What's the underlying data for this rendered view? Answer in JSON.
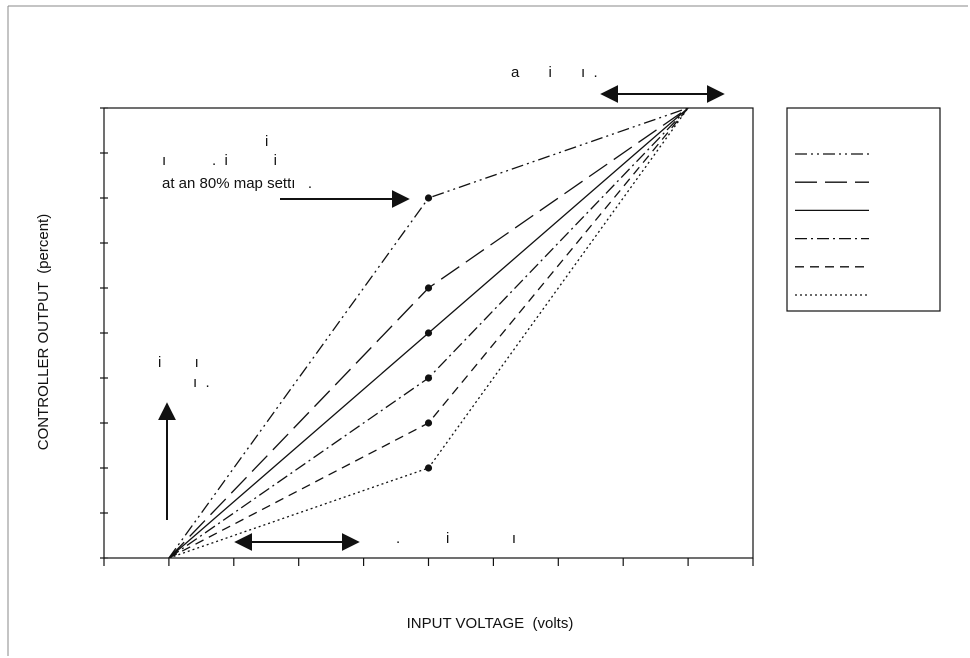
{
  "chart_data": {
    "type": "line",
    "title": "",
    "xlabel": "INPUT VOLTAGE  (volts)",
    "ylabel": "CONTROLLER OUTPUT  (percent)",
    "x_tick_count": 10,
    "y_tick_count": 10,
    "xlim": [
      0,
      10
    ],
    "ylim": [
      0,
      10
    ],
    "grid": false,
    "legend": {
      "position": "right",
      "entries": 6
    },
    "series": [
      {
        "style": "dash-dot-dot",
        "points": [
          [
            1,
            0
          ],
          [
            5,
            8
          ],
          [
            9,
            10
          ]
        ]
      },
      {
        "style": "long-dash",
        "points": [
          [
            1,
            0
          ],
          [
            5,
            6
          ],
          [
            9,
            10
          ]
        ]
      },
      {
        "style": "solid",
        "points": [
          [
            1,
            0
          ],
          [
            5,
            5
          ],
          [
            9,
            10
          ]
        ]
      },
      {
        "style": "dash-dot",
        "points": [
          [
            1,
            0
          ],
          [
            5,
            4
          ],
          [
            9,
            10
          ]
        ]
      },
      {
        "style": "short-dash",
        "points": [
          [
            1,
            0
          ],
          [
            5,
            3
          ],
          [
            9,
            10
          ]
        ]
      },
      {
        "style": "dotted",
        "points": [
          [
            1,
            0
          ],
          [
            5,
            2
          ],
          [
            9,
            10
          ]
        ]
      }
    ],
    "annotations": {
      "top": "a       i       ı  .",
      "left_upper_1": "i",
      "left_upper_2": "ı           .  i           i",
      "map_setting": "at an 80% map settı   .",
      "left_mid_1": "i        ı",
      "left_mid_2": "ı  .",
      "bottom": ".           i               ı"
    }
  }
}
